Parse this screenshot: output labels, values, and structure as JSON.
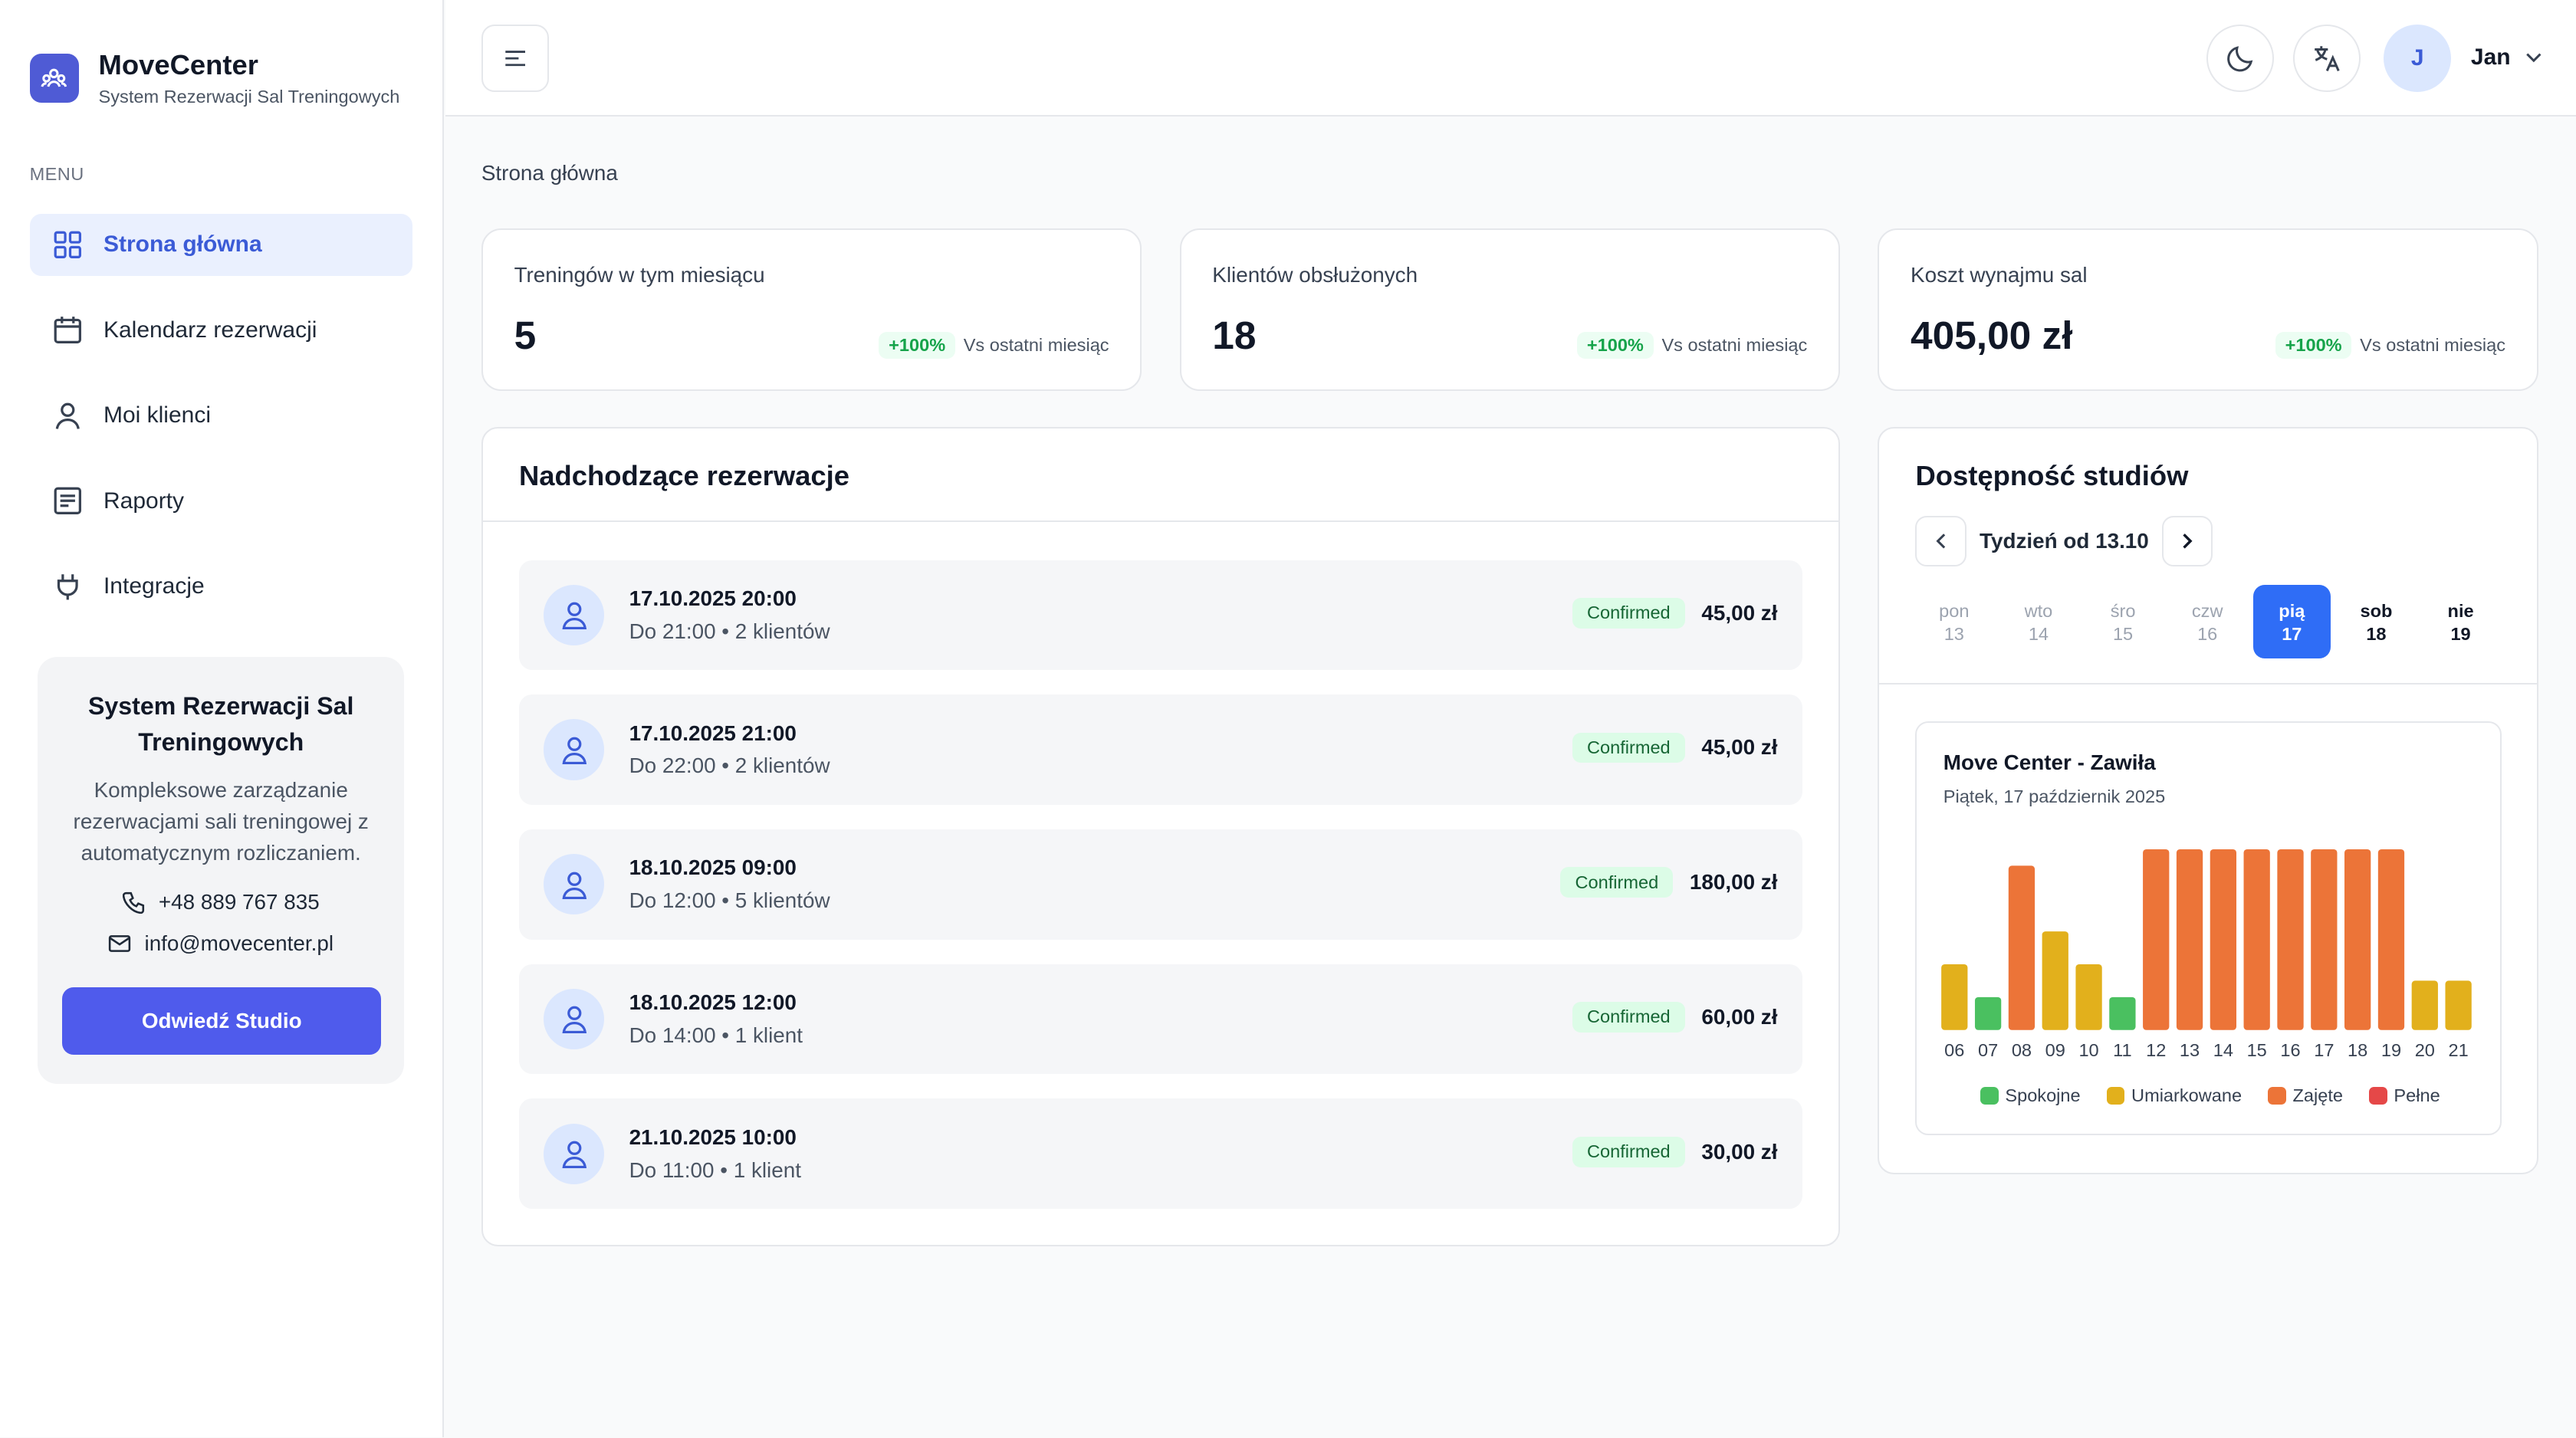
{
  "brand": {
    "name": "MoveCenter",
    "subtitle": "System Rezerwacji Sal Treningowych",
    "logo_icon": "people-icon"
  },
  "sidebar": {
    "menu_label": "MENU",
    "items": [
      {
        "label": "Strona główna",
        "icon": "grid-icon",
        "active": true
      },
      {
        "label": "Kalendarz rezerwacji",
        "icon": "calendar-icon",
        "active": false
      },
      {
        "label": "Moi klienci",
        "icon": "user-icon",
        "active": false
      },
      {
        "label": "Raporty",
        "icon": "report-icon",
        "active": false
      },
      {
        "label": "Integracje",
        "icon": "plug-icon",
        "active": false
      }
    ],
    "promo": {
      "title": "System Rezerwacji Sal Treningowych",
      "description": "Kompleksowe zarządzanie rezerwacjami sali treningowej z automatycznym rozliczaniem.",
      "phone": "+48 889 767 835",
      "email": "info@movecenter.pl",
      "button": "Odwiedź Studio"
    }
  },
  "topbar": {
    "user_initial": "J",
    "user_name": "Jan"
  },
  "breadcrumb": "Strona główna",
  "stats": [
    {
      "label": "Treningów w tym miesiącu",
      "value": "5",
      "delta": "+100%",
      "compare": "Vs ostatni miesiąc"
    },
    {
      "label": "Klientów obsłużonych",
      "value": "18",
      "delta": "+100%",
      "compare": "Vs ostatni miesiąc"
    },
    {
      "label": "Koszt wynajmu sal",
      "value": "405,00 zł",
      "delta": "+100%",
      "compare": "Vs ostatni miesiąc"
    }
  ],
  "reservations": {
    "title": "Nadchodzące rezerwacje",
    "items": [
      {
        "date": "17.10.2025 20:00",
        "sub": "Do 21:00 • 2 klientów",
        "status": "Confirmed",
        "price": "45,00 zł"
      },
      {
        "date": "17.10.2025 21:00",
        "sub": "Do 22:00 • 2 klientów",
        "status": "Confirmed",
        "price": "45,00 zł"
      },
      {
        "date": "18.10.2025 09:00",
        "sub": "Do 12:00 • 5 klientów",
        "status": "Confirmed",
        "price": "180,00 zł"
      },
      {
        "date": "18.10.2025 12:00",
        "sub": "Do 14:00 • 1 klient",
        "status": "Confirmed",
        "price": "60,00 zł"
      },
      {
        "date": "21.10.2025 10:00",
        "sub": "Do 11:00 • 1 klient",
        "status": "Confirmed",
        "price": "30,00 zł"
      }
    ]
  },
  "availability": {
    "title": "Dostępność studiów",
    "week_label": "Tydzień od 13.10",
    "days": [
      {
        "name": "pon",
        "num": "13",
        "state": "normal"
      },
      {
        "name": "wto",
        "num": "14",
        "state": "normal"
      },
      {
        "name": "śro",
        "num": "15",
        "state": "normal"
      },
      {
        "name": "czw",
        "num": "16",
        "state": "normal"
      },
      {
        "name": "pią",
        "num": "17",
        "state": "selected"
      },
      {
        "name": "sob",
        "num": "18",
        "state": "weekend"
      },
      {
        "name": "nie",
        "num": "19",
        "state": "weekend"
      }
    ],
    "studio_name": "Move Center - Zawiła",
    "studio_date": "Piątek, 17 październik 2025"
  },
  "chart_data": {
    "type": "bar",
    "categories": [
      "06",
      "07",
      "08",
      "09",
      "10",
      "11",
      "12",
      "13",
      "14",
      "15",
      "16",
      "17",
      "18",
      "19",
      "20",
      "21"
    ],
    "values": [
      2,
      1,
      5,
      3,
      2,
      1,
      5.5,
      5.5,
      5.5,
      5.5,
      5.5,
      5.5,
      5.5,
      5.5,
      1.5,
      1.5
    ],
    "levels": [
      "Umiarkowane",
      "Spokojne",
      "Zajęte",
      "Umiarkowane",
      "Umiarkowane",
      "Spokojne",
      "Zajęte",
      "Zajęte",
      "Zajęte",
      "Zajęte",
      "Zajęte",
      "Zajęte",
      "Zajęte",
      "Zajęte",
      "Umiarkowane",
      "Umiarkowane"
    ],
    "ylim": [
      0,
      5.5
    ],
    "grid": false,
    "legend": [
      {
        "name": "Spokojne",
        "color": "#4ac060"
      },
      {
        "name": "Umiarkowane",
        "color": "#e2b01c"
      },
      {
        "name": "Zajęte",
        "color": "#ec7438"
      },
      {
        "name": "Pełne",
        "color": "#e54848"
      }
    ],
    "legend_position": "bottom"
  }
}
